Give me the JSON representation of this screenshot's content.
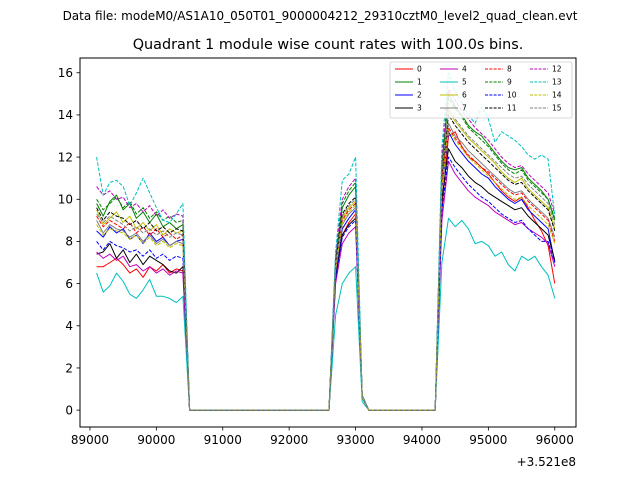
{
  "chart_data": {
    "type": "line",
    "suptitle": "Data file: modeM0/AS1A10_050T01_9000004212_29310cztM0_level2_quad_clean.evt",
    "title": "Quadrant 1 module wise count rates with 100.0s bins.",
    "xlabel": "",
    "ylabel": "",
    "x_offset_label": "+3.521e8",
    "xlim": [
      88850,
      96320
    ],
    "ylim": [
      -0.8,
      16.7
    ],
    "xticks": [
      89000,
      90000,
      91000,
      92000,
      93000,
      94000,
      95000,
      96000
    ],
    "xtick_labels": [
      "89000",
      "90000",
      "91000",
      "92000",
      "93000",
      "94000",
      "95000",
      "96000"
    ],
    "yticks": [
      0,
      2,
      4,
      6,
      8,
      10,
      12,
      14,
      16
    ],
    "ytick_labels": [
      "0",
      "2",
      "4",
      "6",
      "8",
      "10",
      "12",
      "14",
      "16"
    ],
    "grid": false,
    "legend_location": "top-right",
    "x_segments": [
      [
        89100,
        89200,
        89300,
        89400,
        89500,
        89600,
        89700,
        89800,
        89900,
        90000,
        90100,
        90200,
        90300,
        90400
      ],
      [
        90500,
        92600
      ],
      [
        92700,
        92800,
        92900,
        93000,
        93100,
        93200
      ],
      [
        93300,
        94200
      ],
      [
        94300,
        94400,
        94500,
        94600,
        94700,
        94800,
        94900,
        95000,
        95100,
        95200,
        95300,
        95400,
        95500,
        95600,
        95700,
        95800,
        95900,
        96000
      ]
    ],
    "series": [
      {
        "name": "0",
        "color": "#ff0000",
        "dash": false,
        "segments": [
          [
            6.8,
            6.8,
            7.0,
            7.2,
            6.9,
            6.5,
            6.7,
            6.3,
            6.8,
            6.6,
            6.9,
            6.5,
            6.7,
            6.6
          ],
          [
            0,
            0
          ],
          [
            6.5,
            8.3,
            8.9,
            9.3,
            0.6,
            0
          ],
          [
            0,
            0
          ],
          [
            9.5,
            13.0,
            13.2,
            12.5,
            12.0,
            11.8,
            11.5,
            11.2,
            10.8,
            10.4,
            10.1,
            9.9,
            10.1,
            9.6,
            9.0,
            8.5,
            7.8,
            6.0
          ]
        ]
      },
      {
        "name": "1",
        "color": "#008000",
        "dash": false,
        "segments": [
          [
            9.8,
            9.2,
            9.9,
            10.2,
            9.5,
            9.8,
            9.1,
            9.4,
            8.9,
            9.3,
            8.7,
            8.9,
            8.6,
            8.8
          ],
          [
            0,
            0
          ],
          [
            7.0,
            9.6,
            10.2,
            10.6,
            0.7,
            0
          ],
          [
            0,
            0
          ],
          [
            11.5,
            15.0,
            14.4,
            14.0,
            13.5,
            13.2,
            13.0,
            12.6,
            12.2,
            11.8,
            11.5,
            11.4,
            11.5,
            11.0,
            10.7,
            10.4,
            10.0,
            9.0
          ]
        ]
      },
      {
        "name": "2",
        "color": "#0000ff",
        "dash": false,
        "segments": [
          [
            8.5,
            8.2,
            8.7,
            8.4,
            8.6,
            8.1,
            8.3,
            7.9,
            8.4,
            8.0,
            8.2,
            7.8,
            8.0,
            8.1
          ],
          [
            0,
            0
          ],
          [
            6.5,
            8.6,
            9.1,
            9.5,
            0.6,
            0
          ],
          [
            0,
            0
          ],
          [
            10.5,
            13.2,
            12.6,
            12.2,
            11.8,
            11.5,
            11.2,
            11.0,
            10.6,
            10.3,
            10.0,
            9.8,
            10.0,
            9.5,
            9.2,
            8.9,
            8.6,
            7.0
          ]
        ]
      },
      {
        "name": "3",
        "color": "#000000",
        "dash": false,
        "segments": [
          [
            7.4,
            7.5,
            7.9,
            7.2,
            7.6,
            7.0,
            7.4,
            6.9,
            7.3,
            7.1,
            6.9,
            6.6,
            6.5,
            6.8
          ],
          [
            0,
            0
          ],
          [
            6.3,
            8.3,
            8.8,
            9.1,
            0.6,
            0
          ],
          [
            0,
            0
          ],
          [
            10.0,
            12.4,
            11.8,
            11.5,
            11.1,
            10.8,
            10.6,
            10.3,
            10.1,
            9.9,
            9.7,
            9.5,
            9.6,
            9.2,
            8.9,
            8.6,
            8.3,
            7.1
          ]
        ]
      },
      {
        "name": "4",
        "color": "#bf00bf",
        "dash": false,
        "segments": [
          [
            7.5,
            7.2,
            7.4,
            7.1,
            7.3,
            6.8,
            6.9,
            6.6,
            6.8,
            6.5,
            6.7,
            6.4,
            6.6,
            6.5
          ],
          [
            0,
            0
          ],
          [
            6.0,
            7.9,
            8.4,
            8.7,
            0.6,
            0
          ],
          [
            0,
            0
          ],
          [
            9.0,
            11.8,
            11.2,
            10.8,
            10.4,
            10.1,
            9.9,
            9.7,
            9.4,
            9.2,
            9.0,
            8.8,
            8.9,
            8.6,
            8.4,
            8.2,
            7.9,
            6.8
          ]
        ]
      },
      {
        "name": "5",
        "color": "#00bfbf",
        "dash": false,
        "segments": [
          [
            6.5,
            5.6,
            5.9,
            6.5,
            6.1,
            5.5,
            5.3,
            5.7,
            6.2,
            5.4,
            5.4,
            5.3,
            5.1,
            5.4
          ],
          [
            0,
            0
          ],
          [
            4.5,
            6.0,
            6.5,
            6.8,
            0.4,
            0
          ],
          [
            0,
            0
          ],
          [
            7.0,
            9.1,
            8.7,
            9.0,
            8.6,
            7.9,
            8.0,
            7.8,
            7.3,
            7.5,
            6.9,
            6.6,
            7.3,
            7.1,
            7.3,
            6.8,
            6.4,
            5.3
          ]
        ]
      },
      {
        "name": "6",
        "color": "#bfbf00",
        "dash": false,
        "segments": [
          [
            9.5,
            8.8,
            9.1,
            9.4,
            8.9,
            9.2,
            8.6,
            8.9,
            8.5,
            8.8,
            8.3,
            8.6,
            8.4,
            8.5
          ],
          [
            0,
            0
          ],
          [
            6.8,
            9.1,
            9.6,
            9.9,
            0.6,
            0
          ],
          [
            0,
            0
          ],
          [
            11.0,
            14.2,
            13.7,
            13.3,
            12.9,
            12.6,
            12.3,
            12.0,
            11.7,
            11.3,
            11.0,
            10.8,
            11.0,
            10.5,
            10.2,
            9.9,
            9.6,
            8.6
          ]
        ]
      },
      {
        "name": "7",
        "color": "#808080",
        "dash": false,
        "segments": [
          [
            9.0,
            8.4,
            8.8,
            8.6,
            8.5,
            8.2,
            8.4,
            8.0,
            8.3,
            7.9,
            8.1,
            7.8,
            8.0,
            7.9
          ],
          [
            0,
            0
          ],
          [
            6.6,
            8.8,
            9.3,
            9.6,
            0.6,
            0
          ],
          [
            0,
            0
          ],
          [
            10.8,
            13.6,
            13.0,
            12.7,
            12.3,
            12.0,
            11.7,
            11.4,
            11.1,
            10.8,
            10.5,
            10.3,
            10.4,
            10.0,
            9.7,
            9.4,
            9.1,
            8.2
          ]
        ]
      },
      {
        "name": "8",
        "color": "#ff0000",
        "dash": true,
        "segments": [
          [
            9.2,
            8.7,
            9.0,
            8.8,
            8.6,
            8.9,
            8.4,
            8.7,
            8.3,
            8.6,
            8.2,
            8.4,
            8.1,
            8.3
          ],
          [
            0,
            0
          ],
          [
            6.8,
            9.0,
            9.5,
            9.8,
            0.6,
            0
          ],
          [
            0,
            0
          ],
          [
            10.9,
            13.4,
            12.9,
            12.5,
            12.1,
            11.8,
            11.5,
            11.3,
            11.0,
            10.7,
            10.4,
            10.2,
            10.3,
            9.9,
            9.6,
            9.3,
            9.0,
            8.0
          ]
        ]
      },
      {
        "name": "9",
        "color": "#008000",
        "dash": true,
        "segments": [
          [
            10.0,
            9.5,
            9.8,
            10.1,
            9.6,
            9.9,
            9.3,
            9.6,
            9.1,
            9.4,
            9.0,
            9.2,
            8.9,
            9.0
          ],
          [
            0,
            0
          ],
          [
            7.2,
            9.8,
            10.4,
            10.8,
            0.7,
            0
          ],
          [
            0,
            0
          ],
          [
            11.8,
            14.8,
            14.3,
            13.9,
            13.4,
            13.1,
            12.8,
            12.5,
            12.1,
            11.7,
            11.4,
            11.2,
            11.4,
            10.9,
            10.6,
            10.3,
            10.0,
            9.1
          ]
        ]
      },
      {
        "name": "10",
        "color": "#0000ff",
        "dash": true,
        "segments": [
          [
            8.0,
            7.6,
            8.0,
            7.8,
            7.7,
            7.5,
            7.6,
            7.3,
            7.6,
            7.2,
            7.4,
            7.1,
            7.3,
            7.2
          ],
          [
            0,
            0
          ],
          [
            6.2,
            8.2,
            8.7,
            9.0,
            0.6,
            0
          ],
          [
            0,
            0
          ],
          [
            9.5,
            12.0,
            11.5,
            11.1,
            10.7,
            10.4,
            10.1,
            9.9,
            9.6,
            9.3,
            9.1,
            8.9,
            9.0,
            8.6,
            8.3,
            8.0,
            8.0,
            7.0
          ]
        ]
      },
      {
        "name": "11",
        "color": "#000000",
        "dash": true,
        "segments": [
          [
            9.6,
            9.0,
            9.4,
            9.2,
            9.1,
            8.8,
            9.0,
            8.6,
            8.9,
            8.5,
            8.7,
            8.4,
            8.6,
            8.5
          ],
          [
            0,
            0
          ],
          [
            7.0,
            9.3,
            9.8,
            10.1,
            0.6,
            0
          ],
          [
            0,
            0
          ],
          [
            11.2,
            14.0,
            13.5,
            13.1,
            12.7,
            12.4,
            12.1,
            11.8,
            11.5,
            11.2,
            10.9,
            10.7,
            10.8,
            10.4,
            10.1,
            9.8,
            9.5,
            8.5
          ]
        ]
      },
      {
        "name": "12",
        "color": "#bf00bf",
        "dash": true,
        "segments": [
          [
            10.6,
            10.2,
            10.4,
            10.0,
            10.1,
            9.6,
            9.8,
            9.4,
            9.7,
            9.2,
            9.5,
            9.1,
            9.3,
            9.2
          ],
          [
            0,
            0
          ],
          [
            7.4,
            10.0,
            10.6,
            11.0,
            0.7,
            0
          ],
          [
            0,
            0
          ],
          [
            12.0,
            15.2,
            14.7,
            14.2,
            13.8,
            13.4,
            13.1,
            12.8,
            12.4,
            12.0,
            11.7,
            11.5,
            11.6,
            11.2,
            10.9,
            10.6,
            10.3,
            9.3
          ]
        ]
      },
      {
        "name": "13",
        "color": "#00bfbf",
        "dash": true,
        "segments": [
          [
            12.0,
            10.2,
            10.8,
            10.9,
            10.6,
            9.7,
            10.3,
            11.0,
            10.3,
            9.6,
            9.0,
            8.9,
            9.3,
            9.8
          ],
          [
            0,
            0
          ],
          [
            7.5,
            10.9,
            11.2,
            12.0,
            0.7,
            0
          ],
          [
            0,
            0
          ],
          [
            12.5,
            16.0,
            15.1,
            14.6,
            14.0,
            13.6,
            14.4,
            13.8,
            12.7,
            13.2,
            13.0,
            12.8,
            12.5,
            12.1,
            11.9,
            12.1,
            11.9,
            9.2
          ]
        ]
      },
      {
        "name": "14",
        "color": "#bfbf00",
        "dash": true,
        "segments": [
          [
            8.8,
            8.3,
            8.6,
            8.5,
            8.4,
            8.1,
            8.3,
            7.9,
            8.2,
            7.8,
            8.0,
            7.7,
            7.9,
            7.8
          ],
          [
            0,
            0
          ],
          [
            6.7,
            8.9,
            9.4,
            9.7,
            0.6,
            0
          ],
          [
            0,
            0
          ],
          [
            10.6,
            13.3,
            12.8,
            12.4,
            12.0,
            11.7,
            11.4,
            11.1,
            10.8,
            10.5,
            10.2,
            10.0,
            10.1,
            9.7,
            9.4,
            9.1,
            8.8,
            7.9
          ]
        ]
      },
      {
        "name": "15",
        "color": "#808080",
        "dash": true,
        "segments": [
          [
            9.3,
            8.9,
            9.2,
            9.0,
            8.8,
            8.5,
            8.7,
            8.4,
            8.6,
            8.3,
            8.5,
            8.2,
            8.4,
            8.3
          ],
          [
            0,
            0
          ],
          [
            6.9,
            9.2,
            9.7,
            10.0,
            0.6,
            0
          ],
          [
            0,
            0
          ],
          [
            11.3,
            14.3,
            13.8,
            13.4,
            13.0,
            12.7,
            12.4,
            12.1,
            11.8,
            11.5,
            11.2,
            11.0,
            11.1,
            10.7,
            10.4,
            10.1,
            9.8,
            8.8
          ]
        ]
      }
    ]
  }
}
